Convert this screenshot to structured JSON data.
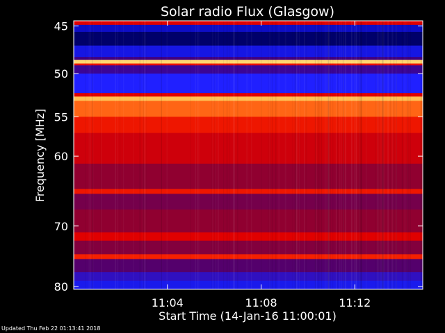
{
  "chart_data": {
    "type": "heatmap",
    "title": "Solar radio Flux (Glasgow)",
    "ylabel": "Frequency [MHz]",
    "xlabel": "Start Time (14-Jan-16 11:00:01)",
    "xlim_minutes": [
      0,
      14.9
    ],
    "ylim": [
      44.5,
      80.5
    ],
    "y_scale": "log",
    "y_ticks": [
      {
        "value": 45,
        "label": "45"
      },
      {
        "value": 50,
        "label": "50"
      },
      {
        "value": 55,
        "label": "55"
      },
      {
        "value": 60,
        "label": "60"
      },
      {
        "value": 70,
        "label": "70"
      },
      {
        "value": 80,
        "label": "80"
      }
    ],
    "x_ticks": [
      {
        "value": 4,
        "label": "11:04"
      },
      {
        "value": 8,
        "label": "11:08"
      },
      {
        "value": 12,
        "label": "11:12"
      }
    ],
    "bands": [
      {
        "from": 44.5,
        "to": 44.9,
        "level": 0.55
      },
      {
        "from": 44.9,
        "to": 45.6,
        "level": 0.12
      },
      {
        "from": 45.6,
        "to": 47.0,
        "level": 0.05
      },
      {
        "from": 47.0,
        "to": 48.2,
        "level": 0.15
      },
      {
        "from": 48.2,
        "to": 48.5,
        "level": 0.3
      },
      {
        "from": 48.5,
        "to": 48.9,
        "level": 0.93
      },
      {
        "from": 48.9,
        "to": 49.1,
        "level": 0.6
      },
      {
        "from": 49.1,
        "to": 50.0,
        "level": 0.28
      },
      {
        "from": 50.0,
        "to": 52.2,
        "level": 0.18
      },
      {
        "from": 52.2,
        "to": 52.6,
        "level": 0.55
      },
      {
        "from": 52.6,
        "to": 53.1,
        "level": 0.9
      },
      {
        "from": 53.1,
        "to": 55.0,
        "level": 0.78
      },
      {
        "from": 55.0,
        "to": 57.0,
        "level": 0.62
      },
      {
        "from": 57.0,
        "to": 61.0,
        "level": 0.52
      },
      {
        "from": 61.0,
        "to": 64.5,
        "level": 0.42
      },
      {
        "from": 64.5,
        "to": 65.2,
        "level": 0.62
      },
      {
        "from": 65.2,
        "to": 67.5,
        "level": 0.38
      },
      {
        "from": 67.5,
        "to": 71.0,
        "level": 0.42
      },
      {
        "from": 71.0,
        "to": 72.3,
        "level": 0.55
      },
      {
        "from": 72.3,
        "to": 74.5,
        "level": 0.4
      },
      {
        "from": 74.5,
        "to": 75.3,
        "level": 0.65
      },
      {
        "from": 75.3,
        "to": 77.5,
        "level": 0.33
      },
      {
        "from": 77.5,
        "to": 79.0,
        "level": 0.24
      },
      {
        "from": 79.0,
        "to": 80.5,
        "level": 0.16
      }
    ],
    "colormap": [
      [
        0.0,
        "#000010"
      ],
      [
        0.08,
        "#0000a0"
      ],
      [
        0.18,
        "#2020ff"
      ],
      [
        0.3,
        "#400080"
      ],
      [
        0.42,
        "#900030"
      ],
      [
        0.55,
        "#e00000"
      ],
      [
        0.7,
        "#ff3000"
      ],
      [
        0.82,
        "#ff8020"
      ],
      [
        0.92,
        "#ffd060"
      ],
      [
        1.0,
        "#ffffe0"
      ]
    ]
  },
  "footer": {
    "updated": "Updated Thu Feb 22 01:13:41 2018"
  }
}
